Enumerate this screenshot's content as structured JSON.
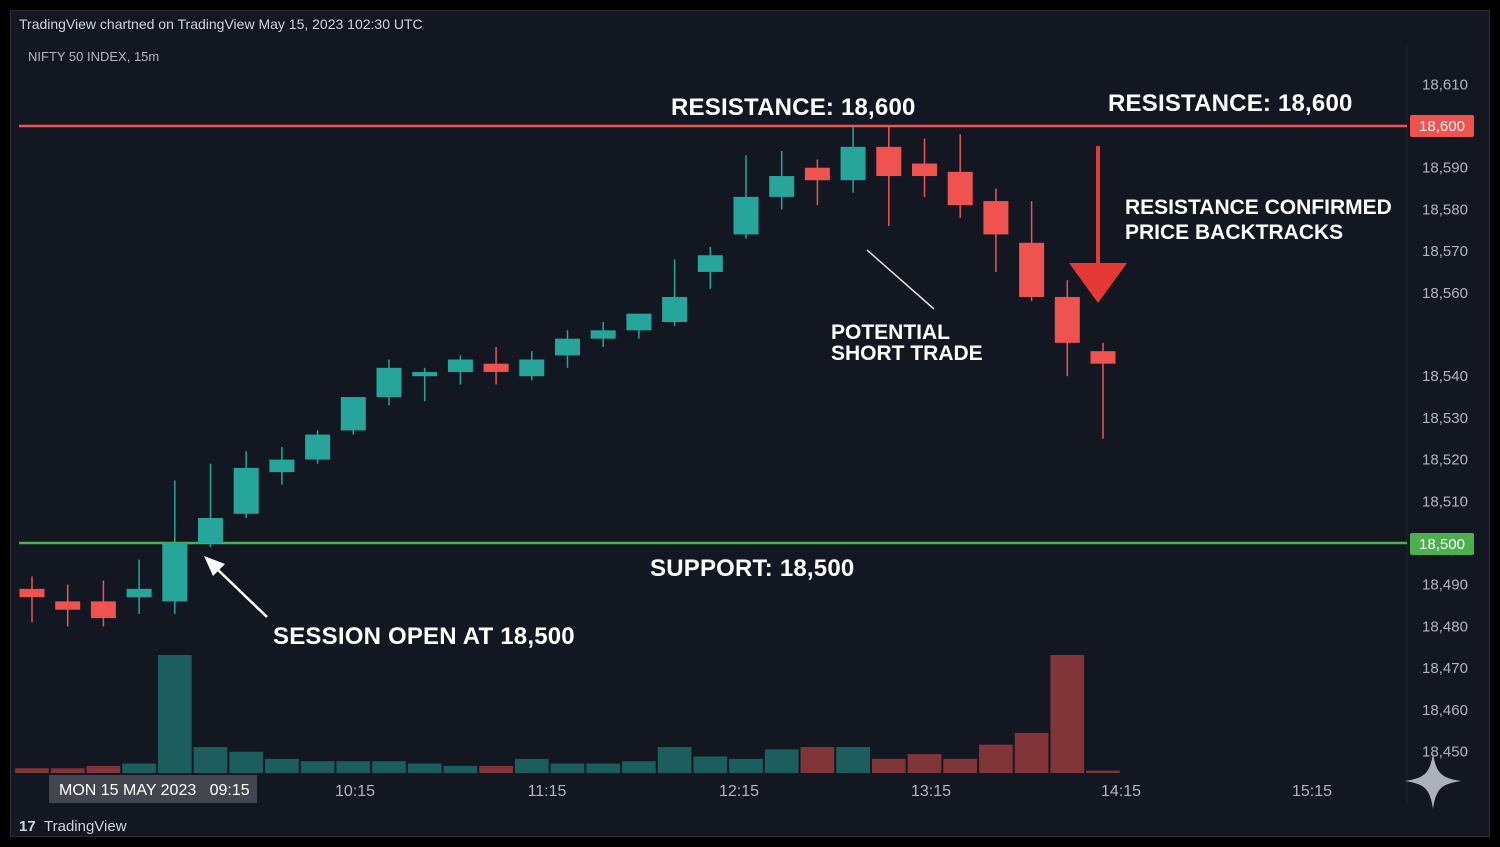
{
  "header": {
    "chart_credit": "TradingView chartned on TradingView May 15, 2023 102:30 UTC",
    "symbol": "NIFTY 50 INDEX, 15m"
  },
  "footer": {
    "brand": "TradingView"
  },
  "colors": {
    "background": "#131722",
    "up": "#26a69a",
    "down": "#ef5350",
    "resistance_line": "#ef5350",
    "support_line": "#4caf50",
    "arrow": "#e53935"
  },
  "annotations": {
    "resistance_center": "RESISTANCE: 18,600",
    "resistance_right": "RESISTANCE: 18,600",
    "resistance_confirmed_1": "RESISTANCE CONFIRMED",
    "resistance_confirmed_2": "PRICE BACKTRACKS",
    "potential_1": "POTENTIAL",
    "potential_2": "SHORT TRADE",
    "support": "SUPPORT: 18,500",
    "session_open": "SESSION OPEN AT 18,500"
  },
  "chart_data": {
    "type": "candlestick",
    "title": "NIFTY 50 INDEX, 15m",
    "ylim": [
      18450,
      18610
    ],
    "y_ticks": [
      18610,
      18600,
      18590,
      18580,
      18570,
      18560,
      18540,
      18530,
      18520,
      18510,
      18500,
      18490,
      18480,
      18470,
      18460,
      18450
    ],
    "y_tick_labels": [
      "18,610",
      "18,600",
      "18,590",
      "18,580",
      "18,570",
      "18,560",
      "18,540",
      "18,530",
      "18,520",
      "18,510",
      "18,500",
      "18,490",
      "18,480",
      "18,470",
      "18,460",
      "18,450"
    ],
    "x_ticks": [
      "10:15",
      "11:15",
      "12:15",
      "13:15",
      "14:15",
      "15:15"
    ],
    "current_date_label": "MON 15 MAY 2023   09:15",
    "resistance": {
      "value": 18600,
      "label": "18,600"
    },
    "support": {
      "value": 18500,
      "label": "18,500"
    },
    "candles": [
      {
        "o": 18489,
        "h": 18492,
        "l": 18481,
        "c": 18487,
        "v": 1
      },
      {
        "o": 18486,
        "h": 18490,
        "l": 18480,
        "c": 18484,
        "v": 1
      },
      {
        "o": 18486,
        "h": 18491,
        "l": 18480,
        "c": 18482,
        "v": 1.5
      },
      {
        "o": 18487,
        "h": 18496,
        "l": 18483,
        "c": 18489,
        "v": 2
      },
      {
        "o": 18486,
        "h": 18515,
        "l": 18483,
        "c": 18500,
        "v": 25
      },
      {
        "o": 18500,
        "h": 18519,
        "l": 18499,
        "c": 18506,
        "v": 5.5
      },
      {
        "o": 18507,
        "h": 18522,
        "l": 18506,
        "c": 18518,
        "v": 4.5
      },
      {
        "o": 18517,
        "h": 18523,
        "l": 18514,
        "c": 18520,
        "v": 3
      },
      {
        "o": 18520,
        "h": 18527,
        "l": 18519,
        "c": 18526,
        "v": 2.5
      },
      {
        "o": 18527,
        "h": 18535,
        "l": 18526,
        "c": 18535,
        "v": 2.5
      },
      {
        "o": 18535,
        "h": 18544,
        "l": 18533,
        "c": 18542,
        "v": 2.5
      },
      {
        "o": 18540,
        "h": 18542,
        "l": 18534,
        "c": 18541,
        "v": 2
      },
      {
        "o": 18541,
        "h": 18545,
        "l": 18538,
        "c": 18544,
        "v": 1.5
      },
      {
        "o": 18543,
        "h": 18547,
        "l": 18538,
        "c": 18541,
        "v": 1.5
      },
      {
        "o": 18540,
        "h": 18546,
        "l": 18539,
        "c": 18544,
        "v": 3
      },
      {
        "o": 18545,
        "h": 18551,
        "l": 18542,
        "c": 18549,
        "v": 2
      },
      {
        "o": 18549,
        "h": 18553,
        "l": 18547,
        "c": 18551,
        "v": 2
      },
      {
        "o": 18551,
        "h": 18555,
        "l": 18549,
        "c": 18555,
        "v": 2.5
      },
      {
        "o": 18553,
        "h": 18568,
        "l": 18552,
        "c": 18559,
        "v": 5.5
      },
      {
        "o": 18565,
        "h": 18571,
        "l": 18561,
        "c": 18569,
        "v": 3.5
      },
      {
        "o": 18574,
        "h": 18593,
        "l": 18573,
        "c": 18583,
        "v": 3
      },
      {
        "o": 18583,
        "h": 18594,
        "l": 18580,
        "c": 18588,
        "v": 5
      },
      {
        "o": 18590,
        "h": 18592,
        "l": 18581,
        "c": 18587,
        "v": 5.5
      },
      {
        "o": 18587,
        "h": 18600,
        "l": 18584,
        "c": 18595,
        "v": 5.5
      },
      {
        "o": 18595,
        "h": 18600,
        "l": 18576,
        "c": 18588,
        "v": 3
      },
      {
        "o": 18591,
        "h": 18597,
        "l": 18583,
        "c": 18588,
        "v": 4
      },
      {
        "o": 18589,
        "h": 18598,
        "l": 18578,
        "c": 18581,
        "v": 3
      },
      {
        "o": 18582,
        "h": 18585,
        "l": 18565,
        "c": 18574,
        "v": 6
      },
      {
        "o": 18572,
        "h": 18582,
        "l": 18558,
        "c": 18559,
        "v": 8.5
      },
      {
        "o": 18559,
        "h": 18563,
        "l": 18540,
        "c": 18548,
        "v": 25
      },
      {
        "o": 18546,
        "h": 18548,
        "l": 18525,
        "c": 18543,
        "v": 0.5
      }
    ]
  }
}
